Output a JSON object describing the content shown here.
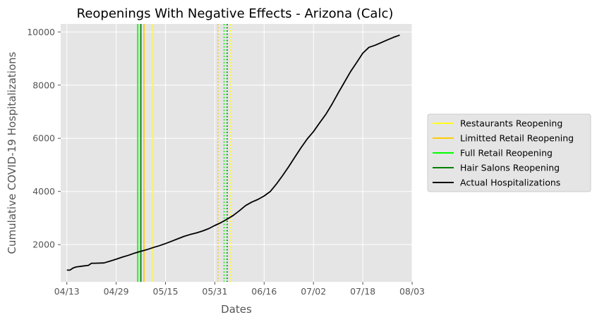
{
  "chart_data": {
    "type": "line",
    "title": "Reopenings With Negative Effects - Arizona (Calc)",
    "xlabel": "Dates",
    "ylabel": "Cumulative COVID-19 Hospitalizations",
    "x_ticks": [
      "04/13",
      "04/29",
      "05/15",
      "05/31",
      "06/16",
      "07/02",
      "07/18",
      "08/03"
    ],
    "y_ticks": [
      2000,
      4000,
      6000,
      8000,
      10000
    ],
    "xlim": [
      "2020-04-11",
      "2020-08-03"
    ],
    "ylim": [
      600,
      10300
    ],
    "grid": true,
    "legend_position": "right",
    "background": "#e5e5e5",
    "series": [
      {
        "name": "Actual Hospitalizations",
        "color": "#000000",
        "x": [
          "2020-04-13",
          "2020-04-14",
          "2020-04-15",
          "2020-04-16",
          "2020-04-18",
          "2020-04-20",
          "2020-04-21",
          "2020-04-22",
          "2020-04-25",
          "2020-04-27",
          "2020-04-29",
          "2020-05-01",
          "2020-05-03",
          "2020-05-05",
          "2020-05-07",
          "2020-05-09",
          "2020-05-11",
          "2020-05-13",
          "2020-05-15",
          "2020-05-17",
          "2020-05-19",
          "2020-05-21",
          "2020-05-23",
          "2020-05-25",
          "2020-05-27",
          "2020-05-29",
          "2020-05-31",
          "2020-06-02",
          "2020-06-04",
          "2020-06-06",
          "2020-06-08",
          "2020-06-10",
          "2020-06-12",
          "2020-06-14",
          "2020-06-16",
          "2020-06-18",
          "2020-06-20",
          "2020-06-22",
          "2020-06-24",
          "2020-06-26",
          "2020-06-28",
          "2020-06-30",
          "2020-07-02",
          "2020-07-04",
          "2020-07-06",
          "2020-07-08",
          "2020-07-10",
          "2020-07-12",
          "2020-07-14",
          "2020-07-16",
          "2020-07-18",
          "2020-07-20",
          "2020-07-22",
          "2020-07-24",
          "2020-07-26",
          "2020-07-28",
          "2020-07-30"
        ],
        "y": [
          1040,
          1040,
          1120,
          1160,
          1190,
          1220,
          1300,
          1300,
          1310,
          1380,
          1450,
          1530,
          1600,
          1680,
          1750,
          1810,
          1890,
          1960,
          2040,
          2130,
          2220,
          2310,
          2380,
          2440,
          2510,
          2600,
          2720,
          2830,
          2960,
          3100,
          3280,
          3470,
          3600,
          3700,
          3830,
          4000,
          4280,
          4600,
          4940,
          5300,
          5650,
          5980,
          6250,
          6580,
          6900,
          7280,
          7700,
          8100,
          8500,
          8850,
          9200,
          9420,
          9500,
          9600,
          9700,
          9800,
          9880
        ]
      }
    ],
    "reference_lines": [
      {
        "name": "Restaurants Reopening",
        "color": "#ffff1a",
        "date": "2020-05-11",
        "style": "solid"
      },
      {
        "name": "Limitted Retail Reopening",
        "color": "#ffcc00",
        "date": "2020-05-08",
        "style": "solid"
      },
      {
        "name": "Full Retail Reopening",
        "color": "#00ff00",
        "date": "2020-05-06",
        "style": "solid"
      },
      {
        "name": "Hair Salons Reopening",
        "color": "#008000",
        "date": "2020-05-07",
        "style": "solid"
      },
      {
        "name": "Restaurants Reopening",
        "color": "#ffff1a",
        "date": "2020-06-05",
        "style": "dotted"
      },
      {
        "name": "Limitted Retail Reopening",
        "color": "#ffcc00",
        "date": "2020-06-01",
        "style": "dotted"
      },
      {
        "name": "Full Retail Reopening",
        "color": "#00ff00",
        "date": "2020-06-03",
        "style": "dotted"
      },
      {
        "name": "Hair Salons Reopening",
        "color": "#008000",
        "date": "2020-06-04",
        "style": "dotted"
      }
    ],
    "legend": [
      {
        "label": "Restaurants Reopening",
        "color": "#ffff1a"
      },
      {
        "label": "Limitted Retail Reopening",
        "color": "#ffcc00"
      },
      {
        "label": "Full Retail Reopening",
        "color": "#00ff00"
      },
      {
        "label": "Hair Salons Reopening",
        "color": "#008000"
      },
      {
        "label": "Actual Hospitalizations",
        "color": "#000000"
      }
    ]
  }
}
